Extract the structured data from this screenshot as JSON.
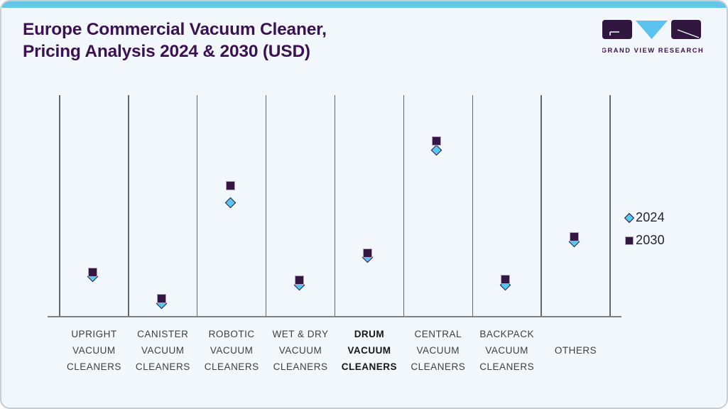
{
  "card": {
    "background": "#f1f7fa",
    "border_color": "#c9ced4",
    "accent_bar_color": "#67c5ec"
  },
  "header": {
    "title_line1": "Europe Commercial Vacuum Cleaner,",
    "title_line2": "Pricing Analysis 2024 & 2030 (USD)",
    "title_color": "#3b1154",
    "logo": {
      "text": "GRAND VIEW RESEARCH",
      "block_color": "#311740",
      "triangle_color": "#5ac4ee"
    }
  },
  "legend": {
    "items": [
      {
        "label": "2024",
        "marker": "diamond",
        "fill": "#57c7f1",
        "stroke": "#2c1540"
      },
      {
        "label": "2030",
        "marker": "square",
        "fill": "#321843",
        "stroke": "#b3a4c2"
      }
    ]
  },
  "x_axis": {
    "labels": [
      {
        "lines": [
          "UPRIGHT",
          "VACUUM",
          "CLEANERS"
        ],
        "bold": false
      },
      {
        "lines": [
          "CANISTER",
          "VACUUM",
          "CLEANERS"
        ],
        "bold": false
      },
      {
        "lines": [
          "ROBOTIC",
          "VACUUM",
          "CLEANERS"
        ],
        "bold": false
      },
      {
        "lines": [
          "WET & DRY",
          "VACUUM",
          "CLEANERS"
        ],
        "bold": false
      },
      {
        "lines": [
          "DRUM",
          "VACUUM",
          "CLEANERS"
        ],
        "bold": true
      },
      {
        "lines": [
          "CENTRAL",
          "VACUUM",
          "CLEANERS"
        ],
        "bold": false
      },
      {
        "lines": [
          "BACKPACK",
          "VACUUM",
          "CLEANERS"
        ],
        "bold": false
      },
      {
        "lines": [
          "OTHERS"
        ],
        "bold": false
      }
    ]
  },
  "chart_data": {
    "type": "scatter",
    "title": "Europe Commercial Vacuum Cleaner, Pricing Analysis 2024 & 2030 (USD)",
    "categories": [
      "Upright Vacuum Cleaners",
      "Canister Vacuum Cleaners",
      "Robotic Vacuum Cleaners",
      "Wet & Dry Vacuum Cleaners",
      "Drum Vacuum Cleaners",
      "Central Vacuum Cleaners",
      "Backpack Vacuum Cleaners",
      "Others"
    ],
    "emphasized_category": "Drum Vacuum Cleaners",
    "series": [
      {
        "name": "2024",
        "marker": "diamond",
        "relative_price_level_pct": [
          18.0,
          5.5,
          51.3,
          14.0,
          26.4,
          75.2,
          14.1,
          33.6
        ]
      },
      {
        "name": "2030",
        "marker": "square",
        "relative_price_level_pct": [
          19.9,
          8.0,
          59.0,
          16.2,
          28.3,
          79.1,
          16.6,
          35.9
        ]
      }
    ],
    "xlabel": "",
    "ylabel": "",
    "y_axis_note": "No numeric scale shown in the figure; values are relative marker heights as % of plot height (0 = x-axis, 100 = plot top).",
    "grid": "vertical category separators only, no horizontal gridlines",
    "legend_position": "right"
  }
}
